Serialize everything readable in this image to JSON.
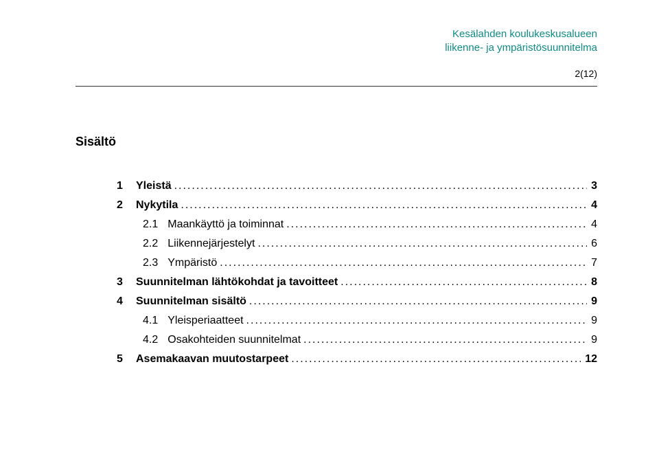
{
  "header": {
    "line1": "Kesälahden koulukeskusalueen",
    "line2": "liikenne- ja ympäristösuunnitelma",
    "color": "#0f8a84"
  },
  "page_number": "2(12)",
  "contents_heading": "Sisältö",
  "toc": [
    {
      "level": 1,
      "num": "1",
      "title": "Yleistä",
      "page": "3"
    },
    {
      "level": 1,
      "num": "2",
      "title": "Nykytila",
      "page": "4"
    },
    {
      "level": 2,
      "num": "2.1",
      "title": "Maankäyttö ja toiminnat",
      "page": "4"
    },
    {
      "level": 2,
      "num": "2.2",
      "title": "Liikennejärjestelyt",
      "page": "6"
    },
    {
      "level": 2,
      "num": "2.3",
      "title": "Ympäristö",
      "page": "7"
    },
    {
      "level": 1,
      "num": "3",
      "title": "Suunnitelman lähtökohdat ja tavoitteet",
      "page": "8"
    },
    {
      "level": 1,
      "num": "4",
      "title": "Suunnitelman sisältö",
      "page": "9"
    },
    {
      "level": 2,
      "num": "4.1",
      "title": "Yleisperiaatteet",
      "page": "9"
    },
    {
      "level": 2,
      "num": "4.2",
      "title": "Osakohteiden suunnitelmat",
      "page": "9"
    },
    {
      "level": 1,
      "num": "5",
      "title": "Asemakaavan muutostarpeet",
      "page": "12"
    }
  ]
}
